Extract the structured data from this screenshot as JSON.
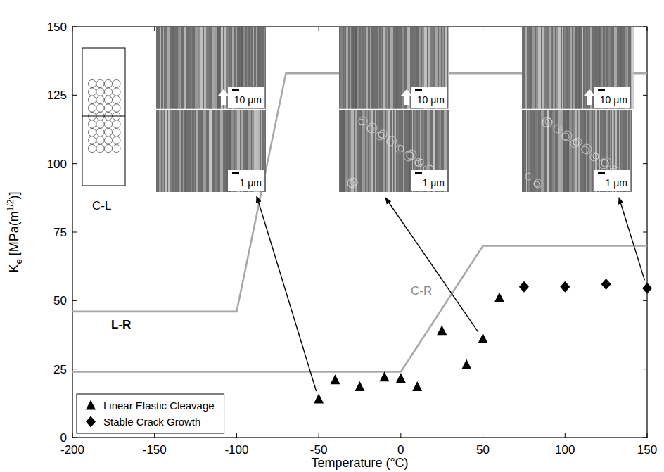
{
  "chart_data": {
    "type": "scatter",
    "xlabel": "Temperature (°C)",
    "ylabel": [
      "K",
      "e",
      " [MPa(m",
      "1/2",
      ")]"
    ],
    "xlim": [
      -200,
      150
    ],
    "xticks": [
      -200,
      -150,
      -100,
      -50,
      0,
      50,
      100,
      150
    ],
    "ylim": [
      0,
      150
    ],
    "yticks": [
      0,
      25,
      50,
      75,
      100,
      125,
      150
    ],
    "legend": "bottom-left",
    "series": [
      {
        "name": "Linear Elastic Cleavage",
        "type": "scatter",
        "marker": "triangle",
        "color": "#000000",
        "x": [
          -50,
          -40,
          -25,
          -10,
          0,
          10,
          25,
          40,
          50,
          60
        ],
        "values": [
          14,
          21,
          18.5,
          22,
          21.5,
          18.5,
          39,
          26.5,
          36,
          51
        ]
      },
      {
        "name": "Stable Crack Growth",
        "type": "scatter",
        "marker": "diamond",
        "color": "#000000",
        "x": [
          75,
          100,
          125,
          150
        ],
        "values": [
          55,
          55,
          56,
          54.5
        ]
      },
      {
        "name": "L-R",
        "type": "line",
        "line_style": "solid",
        "color": "#a8a8a8",
        "x": [
          -200,
          -100,
          -70,
          150
        ],
        "values": [
          46,
          46,
          133,
          133
        ]
      },
      {
        "name": "C-R",
        "type": "line",
        "line_style": "solid",
        "color": "#a8a8a8",
        "x": [
          -200,
          0,
          50,
          150
        ],
        "values": [
          24,
          24,
          70,
          70
        ]
      }
    ],
    "specimen_label": "C-L",
    "insets": [
      {
        "scale_top": "10 μm",
        "scale_bottom": "1 μm"
      },
      {
        "scale_top": "10 μm",
        "scale_bottom": "1 μm"
      },
      {
        "scale_top": "10 μm",
        "scale_bottom": "1 μm"
      }
    ]
  }
}
